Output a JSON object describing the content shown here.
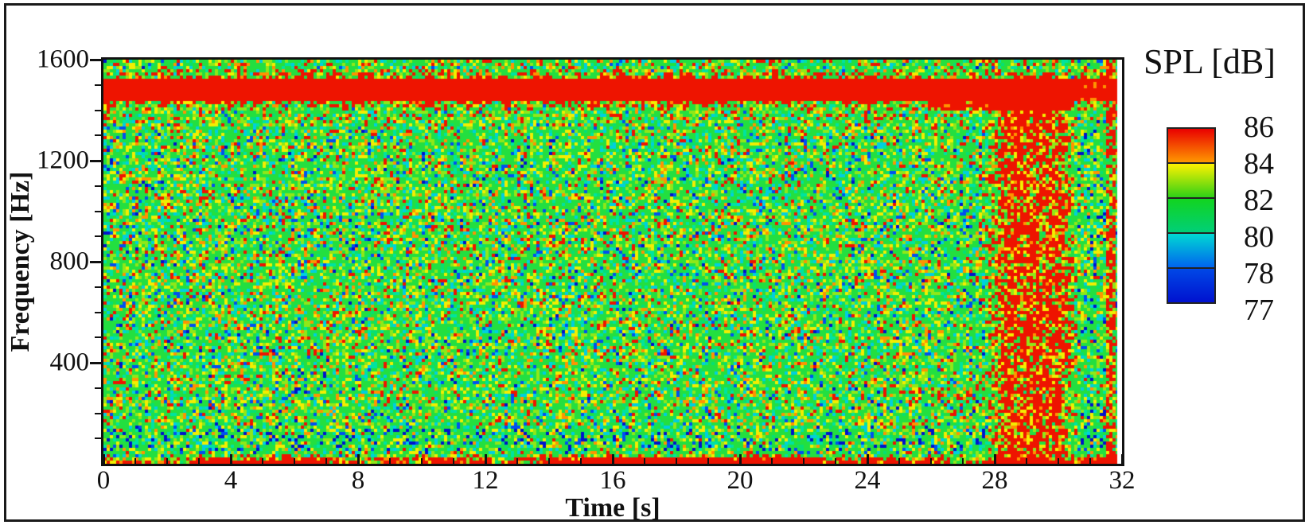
{
  "figure": {
    "frame_color": "#1a1a1a",
    "background": "#ffffff",
    "text_color": "#111111"
  },
  "chart_data": {
    "type": "heatmap",
    "title": "",
    "xlabel": "Time [s]",
    "ylabel": "Frequency [Hz]",
    "xlim": [
      0,
      32
    ],
    "ylim": [
      0,
      1600
    ],
    "xticks": [
      0,
      4,
      8,
      12,
      16,
      20,
      24,
      28,
      32
    ],
    "yticks": [
      400,
      800,
      1200,
      1600
    ],
    "x_minor_step": 1,
    "y_minor_step": 100,
    "grid": false,
    "legend_position": "right",
    "colorbar": {
      "title": "SPL [dB]",
      "labels": [
        "86",
        "84",
        "82",
        "80",
        "78",
        "77"
      ],
      "cells": [
        {
          "top": "#e90000",
          "bottom": "#ff9800"
        },
        {
          "top": "#fff200",
          "bottom": "#2fd016"
        },
        {
          "top": "#12d41f",
          "bottom": "#00cf78"
        },
        {
          "top": "#00d9d2",
          "bottom": "#0064ef"
        },
        {
          "top": "#0048e6",
          "bottom": "#0011cf"
        }
      ]
    },
    "palette": {
      "stops": [
        [
          0.012,
          "#0013cc"
        ],
        [
          0.055,
          "#0050f0"
        ],
        [
          0.125,
          "#00cfe0"
        ],
        [
          0.195,
          "#00e3a1"
        ],
        [
          0.615,
          "#23df40"
        ],
        [
          0.66,
          "#07df72"
        ],
        [
          0.775,
          "#8fe818"
        ],
        [
          0.875,
          "#f2ee00"
        ],
        [
          0.935,
          "#ff9300"
        ],
        [
          9.0,
          "#ee1400"
        ]
      ]
    },
    "noise_seed": 1337,
    "background_field": {
      "typical_spl_db": [
        80,
        82
      ],
      "speckle_spl_db": [
        77,
        86
      ]
    },
    "features": {
      "tonal_band": {
        "time_s": [
          0,
          32
        ],
        "freq_hz": [
          1440,
          1520
        ],
        "halo_hz": [
          1390,
          1572
        ],
        "spl_db": ">86"
      },
      "band_widening": {
        "time_s": [
          25.9,
          30.5
        ],
        "freq_hz": [
          1395,
          1442
        ],
        "spl_db": ">86"
      },
      "broadband_burst": {
        "time_s": [
          27.7,
          30.6
        ],
        "core_time_s": [
          28.35,
          30.05
        ],
        "freq_hz": [
          0,
          1430
        ],
        "spl_db": ">86"
      },
      "burst_side_streaks": {
        "time_s": [
          24.5,
          27.7
        ],
        "freq_hz": [
          255,
          315
        ]
      },
      "bottom_edge_hotspots": {
        "time_s": [
          0,
          32
        ],
        "freq_hz": [
          0,
          45
        ],
        "intermittent": true,
        "spl_db": ">86"
      },
      "low_freq_cool_band": {
        "time_s": [
          0,
          32
        ],
        "freq_hz": [
          45,
          140
        ],
        "spl_db": "77-80"
      },
      "right_edge_streaks": {
        "time_s": [
          31.55,
          31.83
        ],
        "freq_hz": [
          0,
          1600
        ]
      },
      "data_gap": {
        "time_s": [
          31.85,
          32
        ]
      }
    }
  }
}
